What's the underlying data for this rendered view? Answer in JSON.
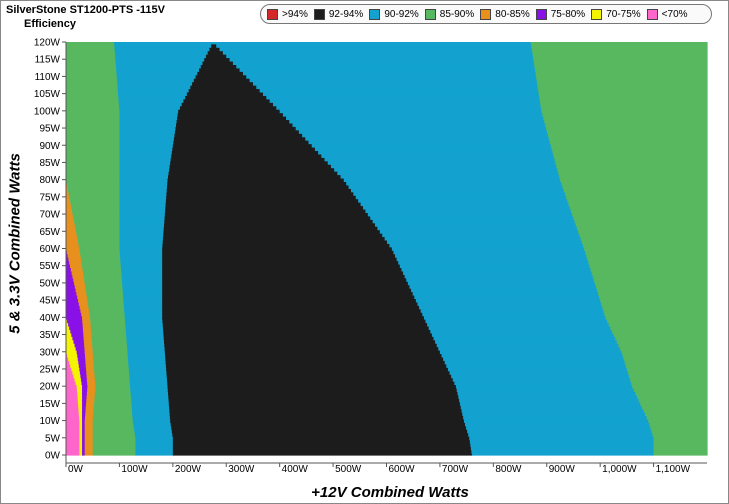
{
  "title": "SilverStone ST1200-PTS -115V",
  "subtitle": "Efficiency",
  "legend": [
    {
      "label": ">94%",
      "color": "#d62728"
    },
    {
      "label": "92-94%",
      "color": "#1c1c1c"
    },
    {
      "label": "90-92%",
      "color": "#13a2d0"
    },
    {
      "label": "85-90%",
      "color": "#58b860"
    },
    {
      "label": "80-85%",
      "color": "#e8901e"
    },
    {
      "label": "75-80%",
      "color": "#8a10e8"
    },
    {
      "label": "70-75%",
      "color": "#f4f400"
    },
    {
      "label": "<70%",
      "color": "#ff66cc"
    }
  ],
  "chart_data": {
    "type": "heatmap",
    "title": "SilverStone ST1200-PTS -115V",
    "subtitle": "Efficiency",
    "xlabel": "+12V Combined Watts",
    "ylabel": "5 & 3.3V Combined Watts",
    "x_ticks": [
      "0W",
      "100W",
      "200W",
      "300W",
      "400W",
      "500W",
      "600W",
      "700W",
      "800W",
      "900W",
      "1,000W",
      "1,100W"
    ],
    "y_ticks": [
      "0W",
      "5W",
      "10W",
      "15W",
      "20W",
      "25W",
      "30W",
      "35W",
      "40W",
      "45W",
      "50W",
      "55W",
      "60W",
      "65W",
      "70W",
      "75W",
      "80W",
      "85W",
      "90W",
      "95W",
      "100W",
      "105W",
      "110W",
      "115W",
      "120W"
    ],
    "xlim": [
      0,
      1200
    ],
    "ylim": [
      0,
      120
    ],
    "regions_by_load": [
      {
        "y": 0,
        "pink": [
          0,
          25
        ],
        "yellow": [
          25,
          30
        ],
        "purple": [
          30,
          35
        ],
        "orange": [
          35,
          50
        ],
        "green": [
          50,
          130
        ],
        "blue": [
          130,
          200
        ],
        "black": [
          200,
          760
        ],
        "blue2": [
          760,
          1100
        ],
        "green2": [
          1100,
          1200
        ]
      },
      {
        "y": 5,
        "pink": [
          0,
          25
        ],
        "yellow": [
          25,
          30
        ],
        "purple": [
          30,
          35
        ],
        "orange": [
          35,
          50
        ],
        "green": [
          50,
          130
        ],
        "blue": [
          130,
          200
        ],
        "black": [
          200,
          755
        ],
        "blue2": [
          755,
          1100
        ],
        "green2": [
          1100,
          1200
        ]
      },
      {
        "y": 10,
        "pink": [
          0,
          25
        ],
        "yellow": [
          25,
          30
        ],
        "purple": [
          30,
          35
        ],
        "orange": [
          35,
          50
        ],
        "green": [
          50,
          125
        ],
        "blue": [
          125,
          195
        ],
        "black": [
          195,
          745
        ],
        "blue2": [
          745,
          1090
        ],
        "green2": [
          1090,
          1200
        ]
      },
      {
        "y": 20,
        "pink": [
          0,
          20
        ],
        "yellow": [
          20,
          30
        ],
        "purple": [
          30,
          40
        ],
        "orange": [
          40,
          55
        ],
        "green": [
          55,
          120
        ],
        "blue": [
          120,
          190
        ],
        "black": [
          190,
          730
        ],
        "blue2": [
          730,
          1060
        ],
        "green2": [
          1060,
          1200
        ]
      },
      {
        "y": 30,
        "pink": [
          0,
          0
        ],
        "yellow": [
          0,
          20
        ],
        "purple": [
          20,
          35
        ],
        "orange": [
          35,
          50
        ],
        "green": [
          50,
          115
        ],
        "blue": [
          115,
          185
        ],
        "black": [
          185,
          700
        ],
        "blue2": [
          700,
          1040
        ],
        "green2": [
          1040,
          1200
        ]
      },
      {
        "y": 40,
        "pink": [
          0,
          0
        ],
        "yellow": [
          0,
          0
        ],
        "purple": [
          0,
          30
        ],
        "orange": [
          30,
          45
        ],
        "green": [
          45,
          110
        ],
        "blue": [
          110,
          180
        ],
        "black": [
          180,
          670
        ],
        "blue2": [
          670,
          1010
        ],
        "green2": [
          1010,
          1200
        ]
      },
      {
        "y": 60,
        "pink": [
          0,
          0
        ],
        "yellow": [
          0,
          0
        ],
        "purple": [
          0,
          0
        ],
        "orange": [
          0,
          25
        ],
        "green": [
          25,
          100
        ],
        "blue": [
          100,
          180
        ],
        "black": [
          180,
          610
        ],
        "blue2": [
          610,
          970
        ],
        "green2": [
          970,
          1200
        ]
      },
      {
        "y": 80,
        "pink": [
          0,
          0
        ],
        "yellow": [
          0,
          0
        ],
        "purple": [
          0,
          0
        ],
        "orange": [
          0,
          0
        ],
        "green": [
          0,
          100
        ],
        "blue": [
          100,
          190
        ],
        "black": [
          190,
          520
        ],
        "blue2": [
          520,
          925
        ],
        "green2": [
          925,
          1200
        ]
      },
      {
        "y": 100,
        "pink": [
          0,
          0
        ],
        "yellow": [
          0,
          0
        ],
        "purple": [
          0,
          0
        ],
        "orange": [
          0,
          0
        ],
        "green": [
          0,
          100
        ],
        "blue": [
          100,
          210
        ],
        "black": [
          210,
          400
        ],
        "blue2": [
          400,
          890
        ],
        "green2": [
          890,
          1200
        ]
      },
      {
        "y": 120,
        "pink": [
          0,
          0
        ],
        "yellow": [
          0,
          0
        ],
        "purple": [
          0,
          0
        ],
        "orange": [
          0,
          0
        ],
        "green": [
          0,
          90
        ],
        "blue": [
          90,
          275
        ],
        "black": [
          275,
          275
        ],
        "blue2": [
          275,
          870
        ],
        "green2": [
          870,
          1200
        ]
      }
    ]
  }
}
